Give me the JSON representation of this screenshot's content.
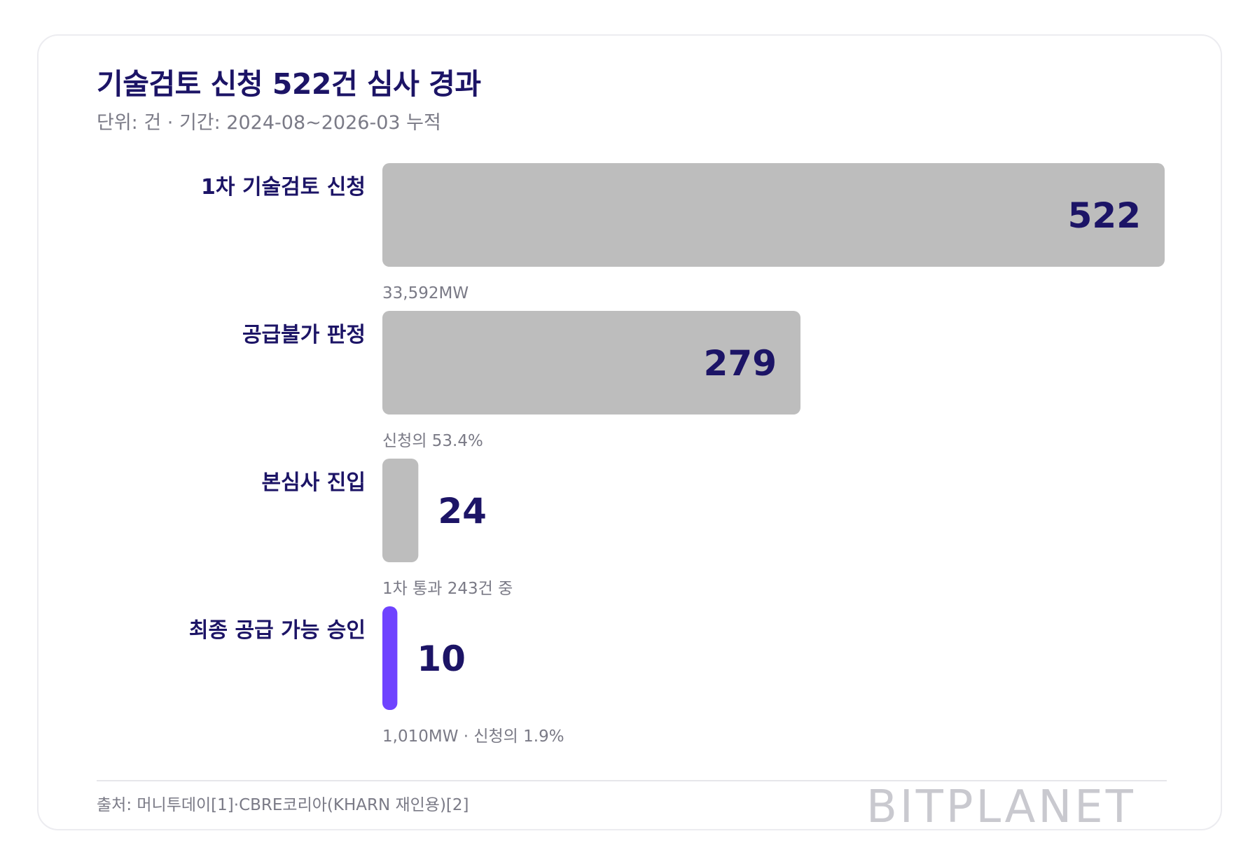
{
  "title": "기술검토 신청 522건 심사 경과",
  "subtitle": "단위: 건 · 기간: 2024-08~2026-03 누적",
  "colors": {
    "bar_default": "#bdbdbd",
    "bar_highlight": "#6f43ff",
    "value_text": "#1c1466",
    "label_text": "#1c1466",
    "note_text": "#7a7a86"
  },
  "chart_data": {
    "type": "bar",
    "orientation": "horizontal",
    "categories": [
      "1차 기술검토 신청",
      "공급불가 판정",
      "본심사 진입",
      "최종 공급 가능 승인"
    ],
    "values": [
      522,
      279,
      24,
      10
    ],
    "value_labels": [
      "522",
      "279",
      "24",
      "10"
    ],
    "notes": [
      "33,592MW",
      "신청의 53.4%",
      "1차 통과 243건 중",
      "1,010MW · 신청의 1.9%"
    ],
    "highlight_index": 3,
    "xlim": [
      0,
      522
    ],
    "grid": false
  },
  "source": "출처: 머니투데이[1]·CBRE코리아(KHARN 재인용)[2]",
  "logo": "BITPLANET"
}
